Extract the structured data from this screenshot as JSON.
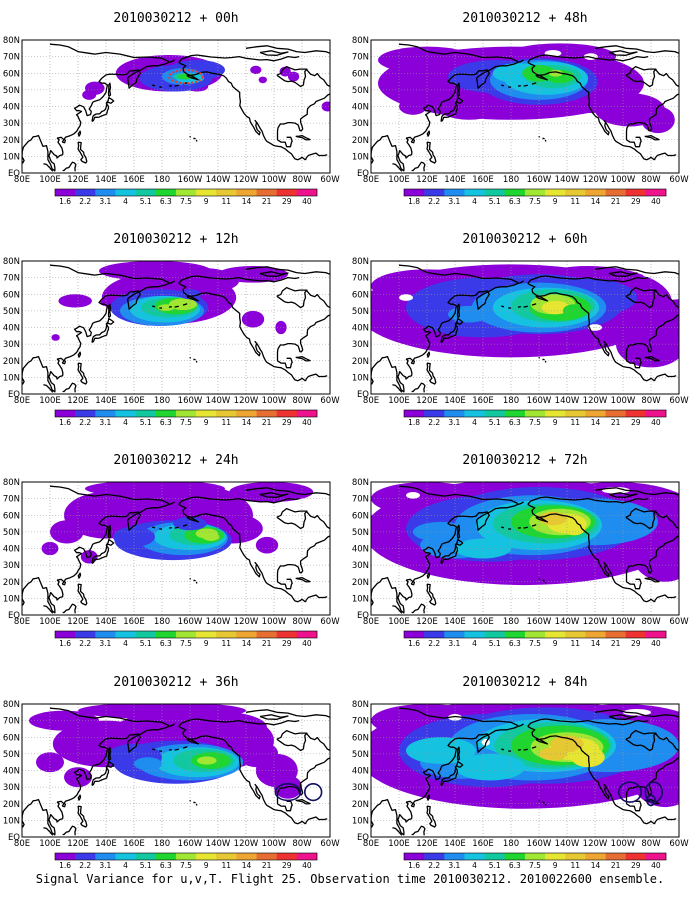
{
  "figure": {
    "caption": "Signal Variance for u,v,T. Flight 25. Observation time 2010030212. 2010022600 ensemble."
  },
  "colors": {
    "colorbar": [
      "#8b00d8",
      "#3a3ae8",
      "#1f8cf0",
      "#15c3e0",
      "#12c8a0",
      "#1fd52f",
      "#a0e632",
      "#e6e632",
      "#e6c832",
      "#eda632",
      "#e66e32",
      "#ee3232",
      "#ee128c"
    ],
    "coast": "#000000",
    "grid": "#9a9a9a"
  },
  "chart_data": [
    {
      "type": "heatmap",
      "title": "2010030212 + 00h",
      "lead_hours": 0,
      "xticks": [
        "80E",
        "100E",
        "120E",
        "140E",
        "160E",
        "180",
        "160W",
        "140W",
        "120W",
        "100W",
        "80W",
        "60W"
      ],
      "yticks": [
        "EQ",
        "10N",
        "20N",
        "30N",
        "40N",
        "50N",
        "60N",
        "70N",
        "80N"
      ],
      "colorbar_levels": [
        "1.6",
        "2.2",
        "3.1",
        "4",
        "5.1",
        "6.3",
        "7.5",
        "9",
        "11",
        "14",
        "21",
        "29",
        "40"
      ]
    },
    {
      "type": "heatmap",
      "title": "2010030212 + 12h",
      "lead_hours": 12,
      "xticks": [
        "80E",
        "100E",
        "120E",
        "140E",
        "160E",
        "180",
        "160W",
        "140W",
        "120W",
        "100W",
        "80W",
        "60W"
      ],
      "yticks": [
        "EQ",
        "10N",
        "20N",
        "30N",
        "40N",
        "50N",
        "60N",
        "70N",
        "80N"
      ],
      "colorbar_levels": [
        "1.6",
        "2.2",
        "3.1",
        "4",
        "5.1",
        "6.3",
        "7.5",
        "9",
        "11",
        "14",
        "21",
        "29",
        "40"
      ]
    },
    {
      "type": "heatmap",
      "title": "2010030212 + 24h",
      "lead_hours": 24,
      "xticks": [
        "80E",
        "100E",
        "120E",
        "140E",
        "160E",
        "180",
        "160W",
        "140W",
        "120W",
        "100W",
        "80W",
        "60W"
      ],
      "yticks": [
        "EQ",
        "10N",
        "20N",
        "30N",
        "40N",
        "50N",
        "60N",
        "70N",
        "80N"
      ],
      "colorbar_levels": [
        "1.6",
        "2.2",
        "3.1",
        "4",
        "5.1",
        "6.3",
        "7.5",
        "9",
        "11",
        "14",
        "21",
        "29",
        "40"
      ]
    },
    {
      "type": "heatmap",
      "title": "2010030212 + 36h",
      "lead_hours": 36,
      "xticks": [
        "80E",
        "100E",
        "120E",
        "140E",
        "160E",
        "180",
        "160W",
        "140W",
        "120W",
        "100W",
        "80W",
        "60W"
      ],
      "yticks": [
        "EQ",
        "10N",
        "20N",
        "30N",
        "40N",
        "50N",
        "60N",
        "70N",
        "80N"
      ],
      "colorbar_levels": [
        "1.6",
        "2.2",
        "3.1",
        "4",
        "5.1",
        "6.3",
        "7.5",
        "9",
        "11",
        "14",
        "21",
        "29",
        "40"
      ]
    },
    {
      "type": "heatmap",
      "title": "2010030212 + 48h",
      "lead_hours": 48,
      "xticks": [
        "80E",
        "100E",
        "120E",
        "140E",
        "160E",
        "180",
        "160W",
        "140W",
        "120W",
        "100W",
        "80W",
        "60W"
      ],
      "yticks": [
        "EQ",
        "10N",
        "20N",
        "30N",
        "40N",
        "50N",
        "60N",
        "70N",
        "80N"
      ],
      "colorbar_levels": [
        "1.8",
        "2.2",
        "3.1",
        "4",
        "5.1",
        "6.3",
        "7.5",
        "9",
        "11",
        "14",
        "21",
        "29",
        "40"
      ]
    },
    {
      "type": "heatmap",
      "title": "2010030212 + 60h",
      "lead_hours": 60,
      "xticks": [
        "80E",
        "100E",
        "120E",
        "140E",
        "160E",
        "180",
        "160W",
        "140W",
        "120W",
        "100W",
        "80W",
        "60W"
      ],
      "yticks": [
        "EQ",
        "10N",
        "20N",
        "30N",
        "40N",
        "50N",
        "60N",
        "70N",
        "80N"
      ],
      "colorbar_levels": [
        "1.8",
        "2.2",
        "3.1",
        "4",
        "5.1",
        "6.3",
        "7.5",
        "9",
        "11",
        "14",
        "21",
        "29",
        "40"
      ]
    },
    {
      "type": "heatmap",
      "title": "2010030212 + 72h",
      "lead_hours": 72,
      "xticks": [
        "80E",
        "100E",
        "120E",
        "140E",
        "160E",
        "180",
        "160W",
        "140W",
        "120W",
        "100W",
        "80W",
        "60W"
      ],
      "yticks": [
        "EQ",
        "10N",
        "20N",
        "30N",
        "40N",
        "50N",
        "60N",
        "70N",
        "80N"
      ],
      "colorbar_levels": [
        "1.6",
        "2.2",
        "3.1",
        "4",
        "5.1",
        "6.3",
        "7.5",
        "9",
        "11",
        "14",
        "21",
        "29",
        "40"
      ]
    },
    {
      "type": "heatmap",
      "title": "2010030212 + 84h",
      "lead_hours": 84,
      "xticks": [
        "80E",
        "100E",
        "120E",
        "140E",
        "160E",
        "180",
        "160W",
        "140W",
        "120W",
        "100W",
        "80W",
        "60W"
      ],
      "yticks": [
        "EQ",
        "10N",
        "20N",
        "30N",
        "40N",
        "50N",
        "60N",
        "70N",
        "80N"
      ],
      "colorbar_levels": [
        "1.6",
        "2.2",
        "3.1",
        "4",
        "5.1",
        "6.3",
        "7.5",
        "9",
        "11",
        "14",
        "21",
        "29",
        "40"
      ]
    }
  ]
}
